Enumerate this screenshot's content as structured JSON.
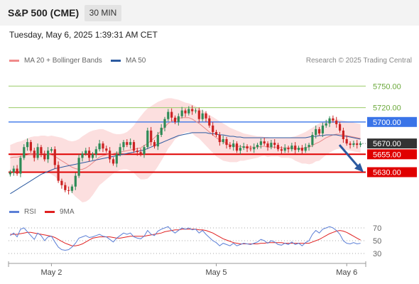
{
  "header": {
    "title": "S&P 500 (CME)",
    "timeframe": "30 MIN",
    "datetime": "Tuesday, May 6, 2025 1:39:31 AM CET"
  },
  "legend": {
    "items": [
      {
        "label": "MA 20 + Bollinger Bands",
        "color": "#f08a8a"
      },
      {
        "label": "MA 50",
        "color": "#2c5aa0"
      }
    ],
    "credit": "Research © 2025 Trading Central"
  },
  "rsi_legend": {
    "items": [
      {
        "label": "RSI",
        "color": "#5b7fd6"
      },
      {
        "label": "9MA",
        "color": "#e02020"
      }
    ]
  },
  "colors": {
    "candle_up": "#2e8b57",
    "candle_down": "#cc2222",
    "support": "#e00000",
    "pivot": "#3a74e8",
    "resistance": "#99cc66",
    "last_price": "#333333",
    "arrow": "#2c5aa0",
    "bands": "#fbd9d9"
  },
  "chart_data": [
    {
      "type": "candlestick",
      "title": "S&P 500 (CME)",
      "interval": "30 MIN",
      "ylim": [
        5585,
        5775
      ],
      "x_labels": [
        "May 2",
        "May 5",
        "May 6"
      ],
      "last_price": {
        "value": 5670,
        "label": "5670.00"
      },
      "levels": [
        {
          "value": 5750,
          "label": "5750.00",
          "kind": "resistance"
        },
        {
          "value": 5720,
          "label": "5720.00",
          "kind": "resistance"
        },
        {
          "value": 5700,
          "label": "5700.00",
          "kind": "pivot"
        },
        {
          "value": 5655,
          "label": "5655.00",
          "kind": "support"
        },
        {
          "value": 5630,
          "label": "5630.00",
          "kind": "support"
        }
      ],
      "arrow": {
        "from": 5668,
        "to": 5632,
        "direction": "down"
      },
      "closes": [
        5630,
        5635,
        5628,
        5650,
        5665,
        5672,
        5660,
        5650,
        5665,
        5656,
        5648,
        5660,
        5662,
        5640,
        5618,
        5612,
        5605,
        5604,
        5610,
        5625,
        5650,
        5656,
        5660,
        5650,
        5655,
        5662,
        5670,
        5663,
        5660,
        5648,
        5642,
        5655,
        5665,
        5672,
        5668,
        5672,
        5660,
        5658,
        5655,
        5665,
        5688,
        5672,
        5666,
        5682,
        5692,
        5704,
        5714,
        5706,
        5700,
        5708,
        5716,
        5712,
        5718,
        5715,
        5716,
        5704,
        5712,
        5705,
        5695,
        5686,
        5682,
        5672,
        5676,
        5668,
        5665,
        5670,
        5660,
        5664,
        5666,
        5663,
        5662,
        5665,
        5668,
        5673,
        5670,
        5665,
        5671,
        5668,
        5662,
        5660,
        5664,
        5662,
        5667,
        5661,
        5664,
        5660,
        5665,
        5668,
        5682,
        5690,
        5684,
        5695,
        5698,
        5705,
        5702,
        5697,
        5688,
        5676,
        5670,
        5668,
        5670,
        5668,
        5670
      ],
      "ma20": [
        5650,
        5651,
        5651,
        5652,
        5653,
        5654,
        5655,
        5655,
        5655,
        5656,
        5656,
        5655,
        5654,
        5652,
        5649,
        5646,
        5643,
        5640,
        5637,
        5635,
        5634,
        5634,
        5636,
        5639,
        5643,
        5647,
        5651,
        5653,
        5654,
        5655,
        5656,
        5657,
        5658,
        5659,
        5660,
        5661,
        5662,
        5663,
        5664,
        5667,
        5670,
        5674,
        5678,
        5683,
        5688,
        5693,
        5698,
        5701,
        5704,
        5705,
        5706,
        5706,
        5706,
        5704,
        5701,
        5698,
        5694,
        5690,
        5686,
        5682,
        5678,
        5675,
        5672,
        5670,
        5668,
        5667,
        5666,
        5666,
        5665,
        5665,
        5665,
        5665,
        5665,
        5666,
        5666,
        5665,
        5665,
        5665,
        5665,
        5664,
        5664,
        5664,
        5664,
        5663,
        5663,
        5663,
        5664,
        5665,
        5667,
        5670,
        5672,
        5675,
        5678,
        5680,
        5682,
        5683,
        5683,
        5682,
        5681,
        5680,
        5679,
        5678,
        5677
      ],
      "bb_upper": [
        5668,
        5670,
        5672,
        5673,
        5675,
        5677,
        5679,
        5680,
        5680,
        5681,
        5681,
        5680,
        5681,
        5680,
        5679,
        5678,
        5676,
        5674,
        5673,
        5674,
        5676,
        5680,
        5683,
        5686,
        5688,
        5689,
        5690,
        5690,
        5688,
        5686,
        5684,
        5683,
        5683,
        5684,
        5686,
        5690,
        5695,
        5702,
        5708,
        5714,
        5719,
        5722,
        5725,
        5728,
        5730,
        5732,
        5733,
        5733,
        5732,
        5731,
        5729,
        5727,
        5726,
        5724,
        5722,
        5719,
        5716,
        5713,
        5710,
        5707,
        5704,
        5701,
        5698,
        5695,
        5692,
        5690,
        5688,
        5686,
        5684,
        5683,
        5682,
        5681,
        5680,
        5680,
        5679,
        5679,
        5678,
        5678,
        5678,
        5678,
        5678,
        5678,
        5679,
        5680,
        5682,
        5684,
        5686,
        5689,
        5692,
        5695,
        5698,
        5700,
        5702,
        5703,
        5704,
        5704,
        5703,
        5702,
        5701,
        5700,
        5699,
        5698,
        5697
      ],
      "bb_lower": [
        5632,
        5632,
        5630,
        5631,
        5631,
        5631,
        5631,
        5630,
        5630,
        5631,
        5631,
        5630,
        5627,
        5624,
        5619,
        5614,
        5610,
        5606,
        5601,
        5596,
        5592,
        5588,
        5589,
        5592,
        5598,
        5605,
        5612,
        5616,
        5620,
        5624,
        5628,
        5631,
        5633,
        5634,
        5634,
        5632,
        5629,
        5624,
        5620,
        5620,
        5621,
        5626,
        5631,
        5638,
        5646,
        5654,
        5663,
        5669,
        5676,
        5679,
        5683,
        5685,
        5686,
        5684,
        5680,
        5677,
        5672,
        5667,
        5662,
        5657,
        5652,
        5649,
        5646,
        5645,
        5644,
        5644,
        5644,
        5646,
        5646,
        5647,
        5648,
        5649,
        5650,
        5652,
        5653,
        5651,
        5652,
        5652,
        5652,
        5650,
        5650,
        5650,
        5649,
        5646,
        5644,
        5642,
        5642,
        5641,
        5642,
        5645,
        5646,
        5650,
        5654,
        5657,
        5660,
        5662,
        5663,
        5662,
        5661,
        5660,
        5659,
        5658,
        5657
      ],
      "ma50": [
        5600,
        5603,
        5606,
        5609,
        5612,
        5615,
        5618,
        5621,
        5624,
        5627,
        5629,
        5631,
        5633,
        5635,
        5636,
        5637,
        5638,
        5639,
        5640,
        5641,
        5642,
        5643,
        5644,
        5645,
        5646,
        5647,
        5648,
        5649,
        5650,
        5651,
        5652,
        5653,
        5654,
        5655,
        5656,
        5657,
        5658,
        5659,
        5660,
        5661,
        5663,
        5665,
        5667,
        5669,
        5671,
        5673,
        5675,
        5677,
        5679,
        5681,
        5682,
        5683,
        5684,
        5685,
        5685,
        5685,
        5685,
        5685,
        5684,
        5684,
        5683,
        5682,
        5682,
        5681,
        5680,
        5680,
        5679,
        5679,
        5678,
        5678,
        5678,
        5678,
        5678,
        5678,
        5678,
        5678,
        5678,
        5678,
        5678,
        5678,
        5678,
        5678,
        5678,
        5678,
        5678,
        5678,
        5678,
        5679,
        5680,
        5680,
        5681,
        5681,
        5682,
        5682,
        5682,
        5682,
        5681,
        5680,
        5680,
        5679,
        5678,
        5677,
        5676
      ]
    },
    {
      "type": "line",
      "title": "RSI",
      "ylim": [
        20,
        80
      ],
      "y_ticks": [
        70,
        50,
        30
      ],
      "series": [
        {
          "name": "RSI",
          "values": [
            58,
            62,
            56,
            68,
            70,
            64,
            58,
            52,
            62,
            58,
            50,
            56,
            57,
            48,
            40,
            36,
            35,
            36,
            40,
            46,
            54,
            56,
            58,
            55,
            56,
            58,
            60,
            57,
            56,
            52,
            48,
            54,
            58,
            62,
            60,
            62,
            56,
            54,
            53,
            57,
            66,
            60,
            58,
            65,
            68,
            70,
            72,
            66,
            62,
            66,
            70,
            68,
            70,
            67,
            68,
            62,
            66,
            60,
            55,
            50,
            47,
            42,
            46,
            44,
            42,
            46,
            42,
            44,
            46,
            45,
            44,
            46,
            48,
            52,
            50,
            46,
            50,
            48,
            44,
            43,
            46,
            44,
            48,
            44,
            46,
            42,
            47,
            50,
            60,
            66,
            62,
            68,
            70,
            72,
            70,
            66,
            60,
            50,
            46,
            45,
            47,
            45,
            46
          ]
        },
        {
          "name": "9MA",
          "values": [
            60,
            60,
            60,
            61,
            62,
            63,
            63,
            62,
            61,
            60,
            59,
            58,
            57,
            55,
            52,
            49,
            46,
            44,
            42,
            42,
            43,
            45,
            48,
            51,
            54,
            55,
            56,
            56,
            56,
            56,
            55,
            54,
            54,
            55,
            56,
            57,
            57,
            57,
            57,
            57,
            58,
            59,
            60,
            61,
            62,
            64,
            65,
            66,
            67,
            67,
            68,
            68,
            68,
            68,
            68,
            67,
            67,
            66,
            64,
            62,
            59,
            56,
            53,
            51,
            49,
            47,
            46,
            45,
            45,
            45,
            45,
            45,
            45,
            46,
            46,
            47,
            47,
            47,
            47,
            47,
            46,
            46,
            46,
            46,
            46,
            46,
            46,
            46,
            48,
            50,
            52,
            55,
            58,
            61,
            63,
            65,
            66,
            65,
            63,
            60,
            57,
            54,
            51
          ]
        }
      ]
    }
  ]
}
